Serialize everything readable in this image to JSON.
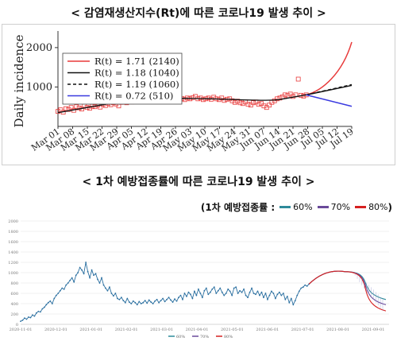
{
  "title1": "< 감염재생산지수(Rt)에 따른 코로나19 발생 추이 >",
  "title2": "< 1차 예방접종률에 따른 코로나19 발생 추이 >",
  "chart_data": [
    {
      "type": "line",
      "ylabel": "Daily incidence",
      "yticks": [
        1000,
        2000
      ],
      "ylim": [
        0,
        2300
      ],
      "x_ticks": [
        "Mar 01",
        "Mar 08",
        "Mar 15",
        "Mar 22",
        "Mar 29",
        "Apr 05",
        "Apr 12",
        "Apr 19",
        "Apr 26",
        "May 03",
        "May 10",
        "May 17",
        "May 24",
        "May 31",
        "Jun 07",
        "Jun 14",
        "Jun 21",
        "Jun 28",
        "Jul 05",
        "Jul 12",
        "Jul 19"
      ],
      "observed_points": [
        380,
        420,
        360,
        450,
        430,
        480,
        410,
        500,
        470,
        440,
        520,
        480,
        460,
        510,
        500,
        540,
        490,
        560,
        530,
        580,
        550,
        600,
        570,
        520,
        610,
        640,
        600,
        650,
        620,
        700,
        660,
        720,
        690,
        740,
        680,
        710,
        760,
        650,
        700,
        680,
        720,
        690,
        640,
        700,
        750,
        660,
        690,
        710,
        680,
        720,
        700,
        730,
        760,
        700,
        720,
        680,
        700,
        720,
        690,
        740,
        700,
        680,
        720,
        660,
        690,
        700,
        650,
        610,
        640,
        600,
        580,
        620,
        560,
        540,
        600,
        620,
        560,
        580,
        520,
        480,
        540,
        610,
        650,
        700,
        720,
        750,
        800,
        780,
        820,
        760,
        800,
        1200,
        790,
        770,
        800
      ],
      "fit_line": [
        350,
        370,
        390,
        410,
        430,
        450,
        470,
        490,
        510,
        530,
        550,
        570,
        590,
        610,
        630,
        650,
        665,
        680,
        695,
        700,
        705,
        708,
        710,
        712,
        714,
        714,
        714,
        713,
        712,
        711,
        709,
        707,
        705,
        703,
        700,
        697,
        694,
        690,
        686,
        682,
        678,
        674,
        670,
        668,
        666,
        664,
        664,
        665,
        670,
        680,
        700,
        720,
        740,
        760,
        780,
        800
      ],
      "series": [
        {
          "name": "R(t) = 1.71 (2140)",
          "color": "#e83a3a",
          "style": "solid",
          "start": 800,
          "end": 2140
        },
        {
          "name": "R(t) = 1.18 (1040)",
          "color": "#111111",
          "style": "solid",
          "start": 800,
          "end": 1040
        },
        {
          "name": "R(t) = 1.19 (1060)",
          "color": "#111111",
          "style": "dashed",
          "start": 800,
          "end": 1060
        },
        {
          "name": "R(t) = 0.72 (510)",
          "color": "#3a3ae0",
          "style": "solid",
          "start": 800,
          "end": 510
        }
      ]
    },
    {
      "type": "line",
      "ylim": [
        0,
        2000
      ],
      "yticks": [
        "0",
        "200",
        "400",
        "600",
        "800",
        "1000",
        "1200",
        "1400",
        "1600",
        "1800",
        "2000"
      ],
      "x_ticks": [
        "2020-11-01",
        "2020-12-01",
        "2021-01-01",
        "2021-02-01",
        "2021-03-01",
        "2021-04-01",
        "2021-05-01",
        "2021-06-01",
        "2021-07-01",
        "2021-08-01",
        "2021-09-01"
      ],
      "observed": [
        60,
        80,
        120,
        100,
        140,
        130,
        180,
        160,
        220,
        250,
        240,
        300,
        330,
        380,
        420,
        450,
        400,
        500,
        560,
        600,
        650,
        700,
        680,
        760,
        800,
        850,
        900,
        820,
        950,
        1000,
        1100,
        1050,
        980,
        1200,
        1020,
        900,
        1050,
        950,
        980,
        870,
        800,
        900,
        760,
        700,
        650,
        720,
        600,
        550,
        600,
        500,
        480,
        520,
        460,
        420,
        500,
        430,
        400,
        450,
        420,
        380,
        440,
        400,
        420,
        460,
        410,
        470,
        430,
        400,
        450,
        480,
        420,
        460,
        500,
        440,
        480,
        520,
        470,
        430,
        490,
        450,
        520,
        560,
        480,
        600,
        540,
        620,
        580,
        500,
        640,
        560,
        680,
        600,
        520,
        650,
        700,
        580,
        620,
        680,
        720,
        600,
        650,
        700,
        620,
        560,
        600,
        680,
        640,
        560,
        700,
        720,
        600,
        650,
        620,
        680,
        560,
        520,
        620,
        700,
        600,
        580,
        640,
        560,
        620,
        520,
        600,
        480,
        560,
        640,
        600,
        500,
        580,
        620,
        560,
        600,
        480,
        540,
        420,
        500,
        380,
        460,
        560,
        640,
        700,
        720,
        760,
        740,
        780
      ],
      "series": [
        {
          "name": "60%",
          "color": "#2e8a9a",
          "peak": 1020,
          "end": 480
        },
        {
          "name": "70%",
          "color": "#6a4a9a",
          "peak": 1020,
          "end": 380
        },
        {
          "name": "80%",
          "color": "#d62020",
          "peak": 1020,
          "end": 260
        }
      ],
      "legend_bottom": [
        "60%",
        "70%",
        "80%"
      ]
    }
  ],
  "legend2": {
    "label": "(1차 예방접종률 :",
    "close": ")",
    "items": [
      "60%",
      "70%",
      "80%"
    ],
    "colors": [
      "#2e8a9a",
      "#6a4a9a",
      "#d62020"
    ]
  }
}
